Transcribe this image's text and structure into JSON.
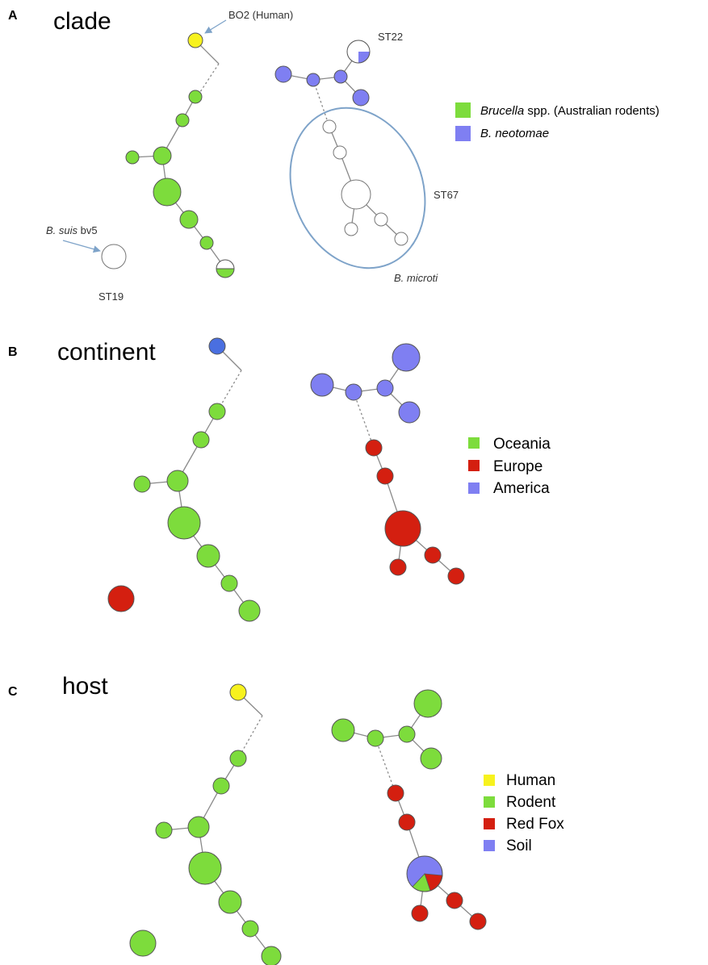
{
  "panels": {
    "a": {
      "letter": "A",
      "title": "clade"
    },
    "b": {
      "letter": "B",
      "title": "continent"
    },
    "c": {
      "letter": "C",
      "title": "host"
    }
  },
  "annotations": {
    "bo2": "BO2 (Human)",
    "st22": "ST22",
    "st67": "ST67",
    "bmicroti": "B. microti",
    "bsuis_italic": "B. suis",
    "bsuis_rest": " bv5",
    "st19": "ST19"
  },
  "legend_clade": [
    {
      "italic": "Brucella",
      "rest": " spp. (Australian rodents)",
      "color": "#7ddc3c"
    },
    {
      "italic": "B. neotomae",
      "rest": "",
      "color": "#7f7ff2"
    }
  ],
  "legend_continent": [
    {
      "label": "Oceania",
      "color": "#7ddc3c"
    },
    {
      "label": "Europe",
      "color": "#d41f10"
    },
    {
      "label": "America",
      "color": "#7f7ff2"
    }
  ],
  "legend_host": [
    {
      "label": "Human",
      "color": "#f7f21e"
    },
    {
      "label": "Rodent",
      "color": "#7ddc3c"
    },
    {
      "label": "Red Fox",
      "color": "#d41f10"
    },
    {
      "label": "Soil",
      "color": "#7f7ff2"
    }
  ]
}
